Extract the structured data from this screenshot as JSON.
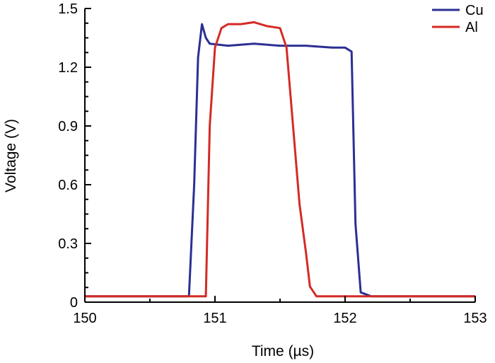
{
  "chart_data": {
    "type": "line",
    "xlabel": "Time (µs)",
    "ylabel": "Voltage (V)",
    "xlim": [
      150,
      153
    ],
    "ylim": [
      0,
      1.5
    ],
    "x_ticks": [
      150,
      151,
      152,
      153
    ],
    "x_tick_labels": [
      "150",
      "151",
      "152",
      "153"
    ],
    "y_ticks": [
      0,
      0.3,
      0.6,
      0.9,
      1.2,
      1.5
    ],
    "y_tick_labels": [
      "0",
      "0.3",
      "0.6",
      "0.9",
      "1.2",
      "1.5"
    ],
    "legend_position": "top-right",
    "grid": false,
    "series": [
      {
        "name": "Cu",
        "color": "#2b2f94",
        "x": [
          150.0,
          150.8,
          150.84,
          150.87,
          150.9,
          150.93,
          150.96,
          151.1,
          151.3,
          151.5,
          151.7,
          151.9,
          152.0,
          152.05,
          152.08,
          152.12,
          152.2,
          153.0
        ],
        "y": [
          0.03,
          0.03,
          0.6,
          1.25,
          1.42,
          1.35,
          1.32,
          1.31,
          1.32,
          1.31,
          1.31,
          1.3,
          1.3,
          1.28,
          0.4,
          0.05,
          0.03,
          0.03
        ]
      },
      {
        "name": "Al",
        "color": "#d42a25",
        "x": [
          150.0,
          150.93,
          150.96,
          151.0,
          151.05,
          151.1,
          151.2,
          151.3,
          151.4,
          151.5,
          151.55,
          151.6,
          151.65,
          151.7,
          151.73,
          151.78,
          153.0
        ],
        "y": [
          0.03,
          0.03,
          0.9,
          1.3,
          1.4,
          1.42,
          1.42,
          1.43,
          1.41,
          1.4,
          1.3,
          0.9,
          0.5,
          0.25,
          0.08,
          0.03,
          0.03
        ]
      }
    ]
  }
}
